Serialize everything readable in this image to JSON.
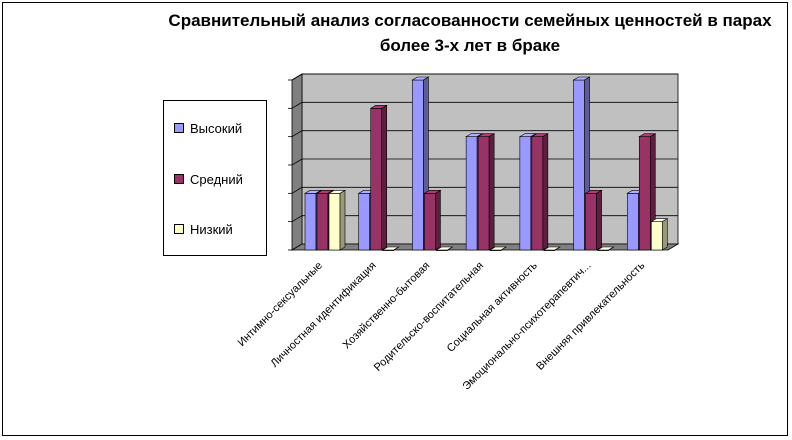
{
  "chart_data": {
    "type": "bar",
    "title": "Сравнительный анализ согласованности семейных ценностей в парах более 3-х лет в браке",
    "categories": [
      "Интимно-сексуальные",
      "Личностная идентификация",
      "Хозяйственно-бытовая",
      "Родительско-воспитательная",
      "Социальная активность",
      "Эмоционально-психотерапевтич...",
      "Внешняя привлекательность"
    ],
    "series": [
      {
        "name": "Высокий",
        "values": [
          2,
          2,
          6,
          4,
          4,
          6,
          2
        ]
      },
      {
        "name": "Средний",
        "values": [
          2,
          5,
          2,
          4,
          4,
          2,
          4
        ]
      },
      {
        "name": "Низкий",
        "values": [
          2,
          0,
          0,
          0,
          0,
          0,
          1
        ]
      }
    ],
    "ylim": [
      0,
      6
    ],
    "grid": true,
    "legend_position": "left",
    "colors": {
      "Высокий": "#9999ff",
      "Средний": "#993366",
      "Низкий": "#ffffcc",
      "wall": "#c0c0c0",
      "floor": "#808080"
    }
  }
}
